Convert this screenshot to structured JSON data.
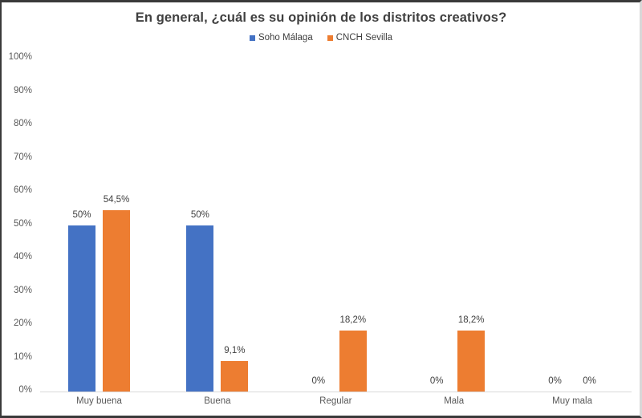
{
  "chart": {
    "title": "En general, ¿cuál es su opinión de los distritos creativos?",
    "legend": [
      {
        "label": "Soho Málaga",
        "color": "#4472c4"
      },
      {
        "label": "CNCH Sevilla",
        "color": "#ed7d31"
      }
    ],
    "y_ticks": [
      "100%",
      "90%",
      "80%",
      "70%",
      "60%",
      "50%",
      "40%",
      "30%",
      "20%",
      "10%",
      "0%"
    ],
    "categories": [
      "Muy buena",
      "Buena",
      "Regular",
      "Mala",
      "Muy mala"
    ],
    "labels": {
      "soho": [
        "50%",
        "50%",
        "0%",
        "0%",
        "0%"
      ],
      "cnch": [
        "54,5%",
        "9,1%",
        "18,2%",
        "18,2%",
        "0%"
      ]
    }
  },
  "chart_data": {
    "type": "bar",
    "title": "En general, ¿cuál es su opinión de los distritos creativos?",
    "categories": [
      "Muy buena",
      "Buena",
      "Regular",
      "Mala",
      "Muy mala"
    ],
    "series": [
      {
        "name": "Soho Málaga",
        "color": "#4472c4",
        "values": [
          50,
          50,
          0,
          0,
          0
        ]
      },
      {
        "name": "CNCH Sevilla",
        "color": "#ed7d31",
        "values": [
          54.5,
          9.1,
          18.2,
          18.2,
          0
        ]
      }
    ],
    "xlabel": "",
    "ylabel": "",
    "ylim": [
      0,
      100
    ],
    "y_tick_step": 10,
    "y_format": "percent",
    "data_labels": true,
    "grid": false,
    "legend_position": "top"
  }
}
